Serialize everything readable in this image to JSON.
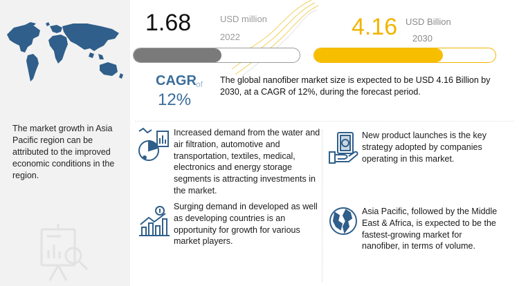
{
  "left": {
    "description": "The market growth in Asia Pacific region  can be attributed to the improved economic conditions in the region."
  },
  "stats": {
    "value_2022": "1.68",
    "unit_2022": "USD million",
    "year_2022": "2022",
    "value_2030": "4.16",
    "unit_2030": "USD Billion",
    "year_2030": "2030",
    "bar_2022_fill": 0.53,
    "bar_2030_fill": 0.71
  },
  "cagr": {
    "label": "CAGR",
    "of": "of",
    "value": "12%"
  },
  "summary": "The global nanofiber market size is expected to be USD 4.16 Billion by 2030, at a CAGR of 12%, during the forecast period.",
  "points": {
    "demand": "Increased demand from the water and air filtration, automotive and transportation, textiles, medical, electronics and energy storage segments is attracting investments in the market.",
    "dot": ".",
    "growth": "Surging demand in developed as well as developing countries is an opportunity for growth for various market players.",
    "launches": "New product launches is the key strategy adopted by companies operating in this market.",
    "region": "Asia Pacific, followed by the Middle East & Africa, is expected to be the fastest-growing market for nanofiber, in terms of volume."
  },
  "colors": {
    "accent_yellow": "#f7be00",
    "accent_blue": "#3a6d9a",
    "bar_gray": "#7a7a7a"
  },
  "icons": {
    "map": "world-map-icon",
    "board": "presentation-board-icon",
    "demand": "filtration-chart-icon",
    "growth": "growth-chart-icon",
    "launches": "money-hand-icon",
    "region": "globe-icon"
  }
}
